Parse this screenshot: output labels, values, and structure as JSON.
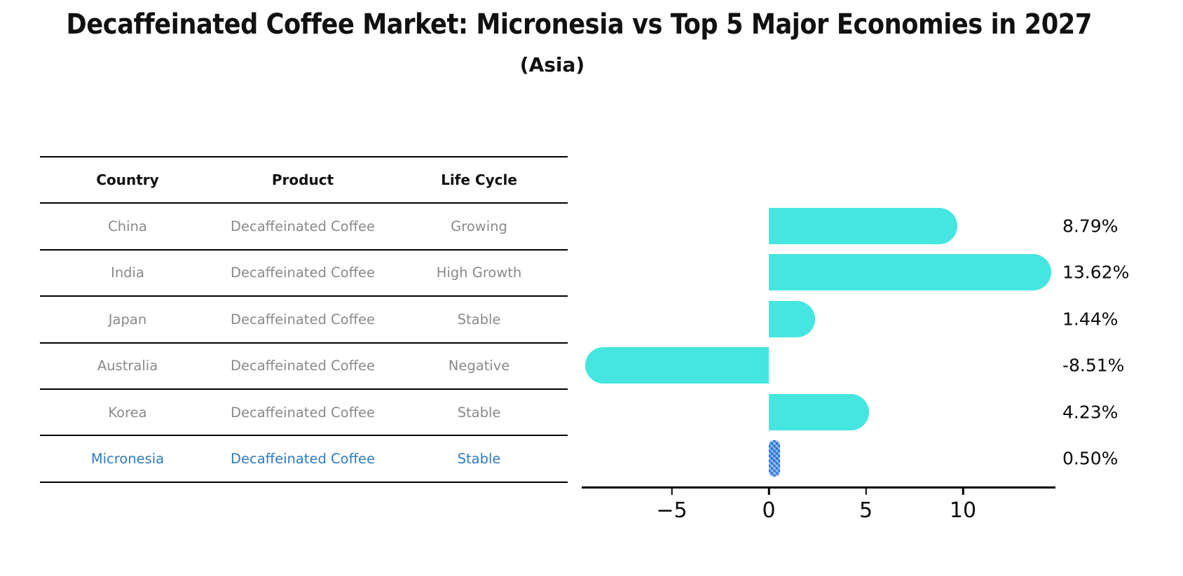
{
  "title": "Decaffeinated Coffee Market: Micronesia vs Top 5 Major Economies in 2027",
  "subtitle": "(Asia)",
  "table": {
    "headers": [
      "Country",
      "Product",
      "Life Cycle"
    ],
    "rows": [
      {
        "country": "China",
        "product": "Decaffeinated Coffee",
        "life_cycle": "Growing"
      },
      {
        "country": "India",
        "product": "Decaffeinated Coffee",
        "life_cycle": "High Growth"
      },
      {
        "country": "Japan",
        "product": "Decaffeinated Coffee",
        "life_cycle": "Stable"
      },
      {
        "country": "Australia",
        "product": "Decaffeinated Coffee",
        "life_cycle": "Negative"
      },
      {
        "country": "Korea",
        "product": "Decaffeinated Coffee",
        "life_cycle": "Stable"
      },
      {
        "country": "Micronesia",
        "product": "Decaffeinated Coffee",
        "life_cycle": "Stable"
      }
    ],
    "highlight_row": "Micronesia"
  },
  "chart_data": {
    "type": "bar",
    "orientation": "horizontal",
    "categories": [
      "China",
      "India",
      "Japan",
      "Australia",
      "Korea",
      "Micronesia"
    ],
    "values": [
      8.79,
      13.62,
      1.44,
      -8.51,
      4.23,
      0.5
    ],
    "value_labels": [
      "8.79%",
      "13.62%",
      "1.44%",
      "-8.51%",
      "4.23%",
      "0.50%"
    ],
    "highlight_index": 5,
    "x_ticks": [
      -5,
      0,
      5,
      10
    ],
    "x_tick_labels": [
      "−5",
      "0",
      "5",
      "10"
    ],
    "xlim": [
      -9.6,
      14.8
    ],
    "grid": false,
    "legend": false,
    "ylabel": "",
    "xlabel": ""
  },
  "colors": {
    "bar": "#45e6e0",
    "barhl": "#2273d8",
    "hltext": "#2e7bbf",
    "muted": "#8a8a8a",
    "ink": "#111111"
  }
}
